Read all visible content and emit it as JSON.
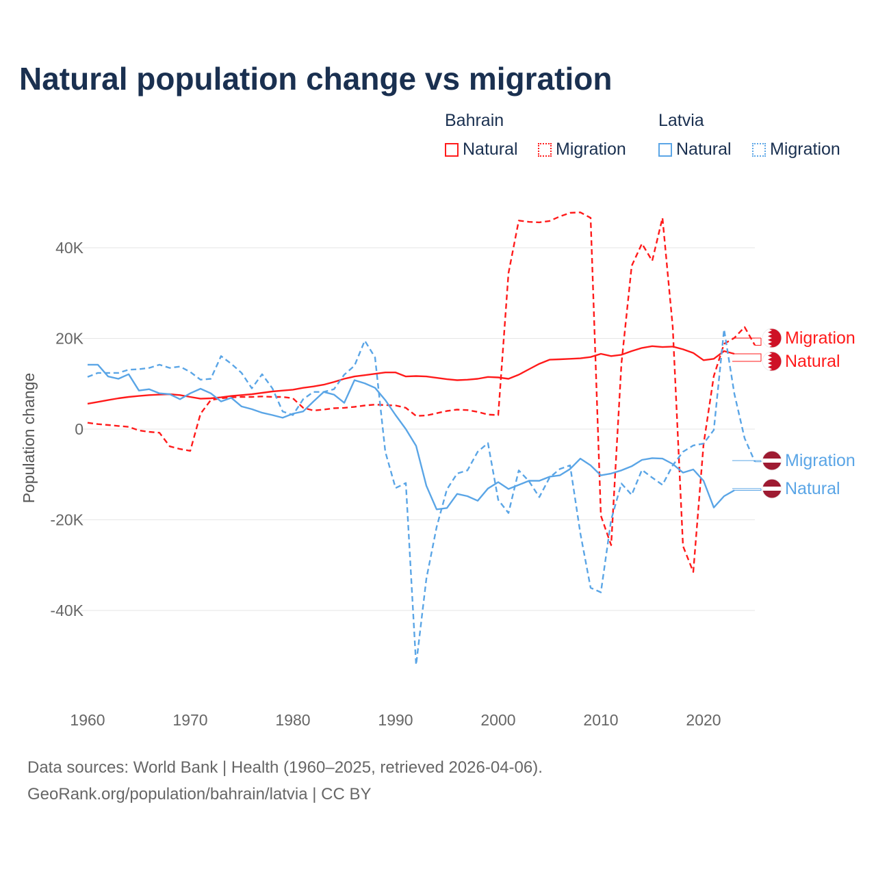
{
  "colors": {
    "bahrain": "#ff1a1a",
    "latvia": "#5aa5e6",
    "grid": "#e6e6e6",
    "title": "#1a3050",
    "axis_text": "#666666"
  },
  "legend": {
    "groups": [
      {
        "name": "Bahrain",
        "items": [
          {
            "label": "Natural",
            "style": "solid"
          },
          {
            "label": "Migration",
            "style": "dotted"
          }
        ]
      },
      {
        "name": "Latvia",
        "items": [
          {
            "label": "Natural",
            "style": "solid"
          },
          {
            "label": "Migration",
            "style": "dotted"
          }
        ]
      }
    ]
  },
  "footer": {
    "line1": "Data sources: World Bank | Health (1960–2025, retrieved 2026-04-06).",
    "line2": "GeoRank.org/population/bahrain/latvia | CC BY"
  },
  "chart_data": {
    "type": "line",
    "title": "Natural population change vs migration",
    "xlabel": "",
    "ylabel": "Population change",
    "xlim": [
      1960,
      2025
    ],
    "ylim": [
      -58000,
      49000
    ],
    "x_ticks": [
      1960,
      1970,
      1980,
      1990,
      2000,
      2010,
      2020
    ],
    "y_ticks": [
      {
        "value": 40000,
        "label": "40K"
      },
      {
        "value": 20000,
        "label": "20K"
      },
      {
        "value": 0,
        "label": "0"
      },
      {
        "value": -20000,
        "label": "-20K"
      },
      {
        "value": -40000,
        "label": "-40K"
      }
    ],
    "grid": true,
    "legend_position": "top-right",
    "x_start": 1960,
    "series": [
      {
        "name": "Bahrain Migration",
        "country": "Bahrain",
        "kind": "Migration",
        "end_label": "Migration",
        "color": "#ff1a1a",
        "dashed": true,
        "flag": "bahrain",
        "values": [
          1400,
          1100,
          900,
          700,
          500,
          -300,
          -600,
          -800,
          -3800,
          -4400,
          -4800,
          3400,
          6400,
          6800,
          7000,
          7100,
          7100,
          7200,
          7100,
          7100,
          6800,
          4700,
          4100,
          4300,
          4600,
          4700,
          4900,
          5200,
          5400,
          5300,
          5200,
          4700,
          2900,
          3000,
          3500,
          4000,
          4300,
          4200,
          3800,
          3200,
          3100,
          34400,
          46000,
          45700,
          45600,
          45900,
          46900,
          47700,
          47800,
          46600,
          -19100,
          -25600,
          14400,
          36000,
          40900,
          37100,
          46600,
          22500,
          -25800,
          -31500,
          -3400,
          11700,
          18800,
          20100,
          22500,
          18500
        ]
      },
      {
        "name": "Bahrain Natural",
        "country": "Bahrain",
        "kind": "Natural",
        "end_label": "Natural",
        "color": "#ff1a1a",
        "dashed": false,
        "flag": "bahrain",
        "values": [
          5600,
          6000,
          6400,
          6800,
          7100,
          7300,
          7500,
          7600,
          7700,
          7500,
          7100,
          6700,
          6800,
          7000,
          7300,
          7500,
          7700,
          8000,
          8300,
          8500,
          8700,
          9100,
          9400,
          9800,
          10400,
          11100,
          11600,
          11900,
          12200,
          12500,
          12500,
          11600,
          11700,
          11600,
          11300,
          11000,
          10800,
          10900,
          11100,
          11500,
          11400,
          11100,
          12000,
          13200,
          14400,
          15300,
          15400,
          15500,
          15600,
          15900,
          16600,
          16100,
          16400,
          17200,
          17900,
          18300,
          18100,
          18200,
          17600,
          16800,
          15200,
          15500,
          17200,
          16600
        ]
      },
      {
        "name": "Latvia Migration",
        "country": "Latvia",
        "kind": "Migration",
        "end_label": "Migration",
        "color": "#5aa5e6",
        "dashed": true,
        "flag": "latvia",
        "values": [
          11500,
          12400,
          12400,
          12400,
          13100,
          13200,
          13500,
          14200,
          13500,
          13800,
          12600,
          10900,
          11100,
          16100,
          14400,
          12400,
          9000,
          12100,
          9000,
          3900,
          3100,
          6600,
          8200,
          8200,
          8800,
          12000,
          14000,
          19500,
          15800,
          -5000,
          -13000,
          -11900,
          -52000,
          -33000,
          -21600,
          -13300,
          -9800,
          -9100,
          -5000,
          -3100,
          -15600,
          -18500,
          -9100,
          -11500,
          -15000,
          -10700,
          -8800,
          -8000,
          -23000,
          -35000,
          -36000,
          -20000,
          -12000,
          -14500,
          -9000,
          -10700,
          -12300,
          -8000,
          -5000,
          -3600,
          -3200,
          -200,
          22000,
          7800,
          -2000,
          -7200
        ]
      },
      {
        "name": "Latvia Natural",
        "country": "Latvia",
        "kind": "Natural",
        "end_label": "Natural",
        "color": "#5aa5e6",
        "dashed": false,
        "flag": "latvia",
        "values": [
          14200,
          14200,
          11600,
          11100,
          12100,
          8500,
          8800,
          7900,
          7700,
          6600,
          7900,
          8900,
          7900,
          6100,
          6900,
          5000,
          4400,
          3600,
          3100,
          2500,
          3400,
          3900,
          6100,
          8200,
          7600,
          5800,
          10800,
          10100,
          9100,
          6400,
          3100,
          0,
          -3700,
          -12500,
          -17700,
          -17400,
          -14300,
          -14800,
          -15800,
          -13100,
          -11700,
          -13200,
          -12300,
          -11400,
          -11400,
          -10500,
          -10200,
          -8800,
          -6500,
          -8000,
          -10200,
          -9800,
          -9100,
          -8200,
          -6800,
          -6400,
          -6500,
          -7700,
          -9600,
          -8900,
          -11400,
          -17300,
          -14800,
          -13500
        ]
      }
    ]
  }
}
